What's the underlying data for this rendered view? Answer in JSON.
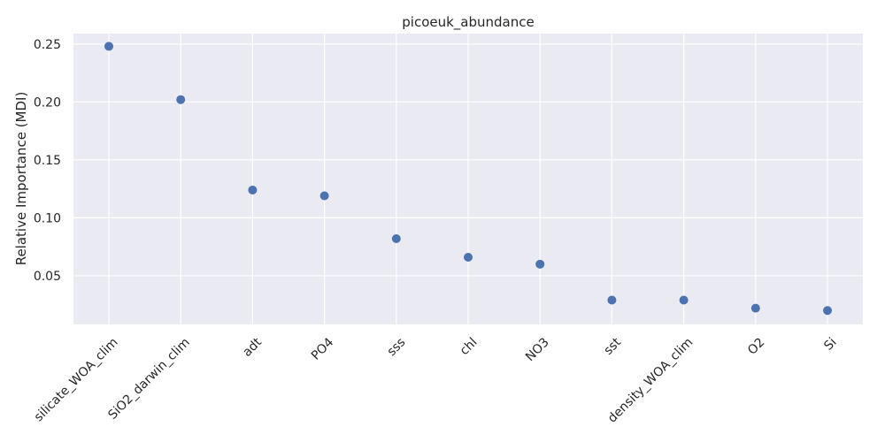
{
  "chart_data": {
    "type": "scatter",
    "title": "picoeuk_abundance",
    "xlabel": "",
    "ylabel": "Relative Importance (MDI)",
    "categories": [
      "silicate_WOA_clim",
      "SiO2_darwin_clim",
      "adt",
      "PO4",
      "sss",
      "chl",
      "NO3",
      "sst",
      "density_WOA_clim",
      "O2",
      "Si"
    ],
    "values": [
      0.248,
      0.202,
      0.124,
      0.119,
      0.082,
      0.066,
      0.06,
      0.029,
      0.029,
      0.022,
      0.02
    ],
    "ylim": [
      0.008,
      0.259
    ],
    "yticks": [
      "0.05",
      "0.10",
      "0.15",
      "0.20",
      "0.25"
    ],
    "ytick_values": [
      0.05,
      0.1,
      0.15,
      0.2,
      0.25
    ],
    "grid": true,
    "colors": {
      "marker": "#4c72b0",
      "background": "#eaeaf2",
      "grid": "#ffffff"
    }
  }
}
